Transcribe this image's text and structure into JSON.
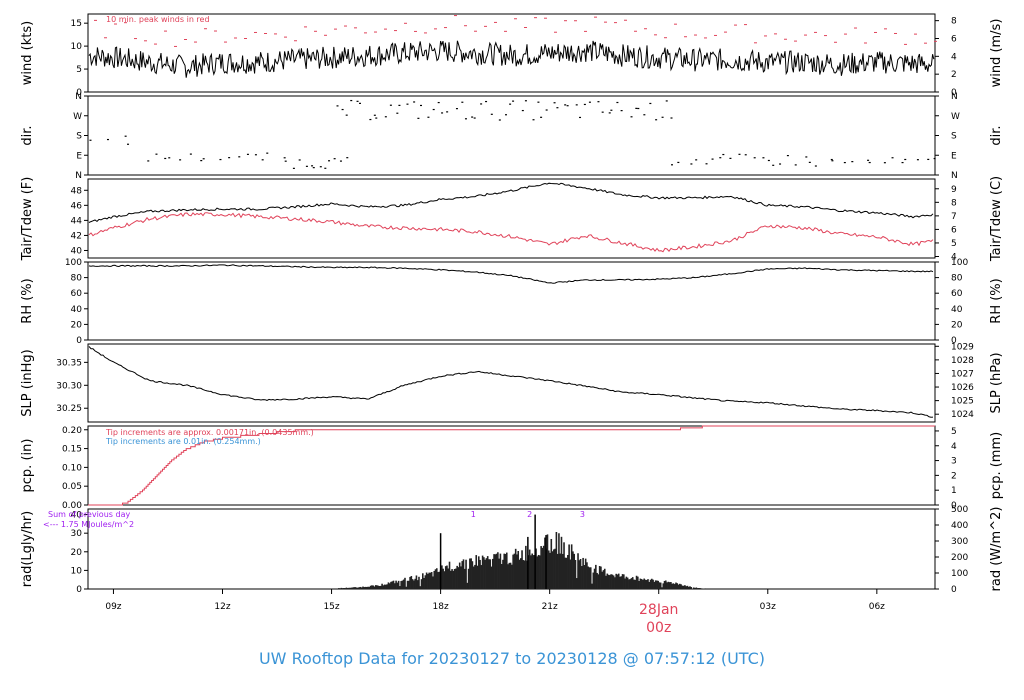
{
  "title": "UW Rooftop Data for 20230127  to  20230128 @ 07:57:12  (UTC)",
  "colors": {
    "title": "#3b94d6",
    "red": "#e0435a",
    "blue": "#3b94d6",
    "purple": "#a020f0",
    "black": "#000000"
  },
  "chart_data": [
    {
      "type": "line",
      "panel": "wind",
      "ylabel_left": "wind (kts)",
      "ylabel_right": "wind (m/s)",
      "left_ticks": [
        "0",
        "5",
        "10",
        "15"
      ],
      "right_ticks": [
        "0",
        "2",
        "4",
        "6",
        "8"
      ],
      "ylim": [
        0,
        17
      ],
      "annotation": "10 min. peak winds in red",
      "series": [
        {
          "x": [
            8.3,
            9,
            10,
            11,
            12,
            13,
            14,
            15,
            16,
            17,
            18,
            19,
            20,
            21,
            22,
            23,
            24,
            25,
            26,
            27,
            28,
            29,
            30,
            31.6
          ],
          "values": [
            8,
            7.5,
            6.5,
            5.5,
            6.5,
            6.5,
            7,
            7.5,
            8,
            8.5,
            9,
            8.5,
            8,
            8.5,
            9,
            8,
            7.5,
            7,
            7,
            6.5,
            6.5,
            6,
            6.5,
            6
          ]
        }
      ]
    },
    {
      "type": "scatter",
      "panel": "dir",
      "ylabel_left": "dir.",
      "ylabel_right": "dir.",
      "left_ticks": [
        "N",
        "E",
        "S",
        "W",
        "N"
      ],
      "right_ticks": [
        "N",
        "E",
        "S",
        "W",
        "N"
      ]
    },
    {
      "type": "line",
      "panel": "temp",
      "ylabel_left": "Tair/Tdew (F)",
      "ylabel_right": "Tair/Tdew (C)",
      "left_ticks": [
        "40",
        "42",
        "44",
        "46",
        "48"
      ],
      "right_ticks": [
        "4",
        "5",
        "6",
        "7",
        "8",
        "9"
      ],
      "ylim": [
        39,
        49.5
      ],
      "series": [
        {
          "x": [
            8.3,
            9,
            10,
            11,
            12,
            13,
            14,
            15,
            16,
            17,
            18,
            19,
            20,
            21,
            22,
            23,
            24,
            25,
            26,
            27,
            28,
            29,
            30,
            31,
            31.6
          ],
          "values": [
            43.7,
            44.5,
            45.2,
            45.4,
            45.5,
            45.5,
            45.8,
            46.2,
            45.8,
            46.0,
            46.8,
            47.2,
            48.0,
            49.0,
            48.3,
            47.4,
            47.0,
            47.0,
            47.2,
            46.0,
            45.8,
            45.3,
            45.0,
            44.5,
            44.8
          ]
        },
        {
          "x": [
            8.3,
            9,
            10,
            11,
            12,
            13,
            14,
            15,
            16,
            17,
            18,
            19,
            20,
            21,
            22,
            23,
            24,
            25,
            26,
            27,
            28,
            29,
            30,
            31,
            31.6
          ],
          "values": [
            42.0,
            43.0,
            44.2,
            44.8,
            44.8,
            44.5,
            44.2,
            43.8,
            43.2,
            43.0,
            42.8,
            42.5,
            41.8,
            40.8,
            42.0,
            41.0,
            40.0,
            40.5,
            41.3,
            43.3,
            43.0,
            42.2,
            41.8,
            40.8,
            41.3
          ]
        }
      ]
    },
    {
      "type": "line",
      "panel": "rh",
      "ylabel_left": "RH (%)",
      "ylabel_right": "RH (%)",
      "left_ticks": [
        "0",
        "20",
        "40",
        "60",
        "80",
        "100"
      ],
      "right_ticks": [
        "0",
        "20",
        "40",
        "60",
        "80",
        "100"
      ],
      "ylim": [
        0,
        100
      ],
      "series": [
        {
          "x": [
            8.3,
            9,
            10,
            11,
            12,
            13,
            14,
            15,
            16,
            17,
            18,
            19,
            20,
            21,
            22,
            23,
            24,
            25,
            26,
            27,
            28,
            29,
            30,
            31,
            31.6
          ],
          "values": [
            95,
            95,
            95,
            95,
            96,
            95,
            94,
            93,
            93,
            92,
            90,
            87,
            82,
            73,
            77,
            77,
            78,
            80,
            85,
            91,
            92,
            90,
            89,
            88,
            88
          ]
        }
      ]
    },
    {
      "type": "line",
      "panel": "slp",
      "ylabel_left": "SLP (inHg)",
      "ylabel_right": "SLP (hPa)",
      "left_ticks": [
        "30.25",
        "30.30",
        "30.35"
      ],
      "right_ticks": [
        "1024",
        "1025",
        "1026",
        "1027",
        "1028",
        "1029"
      ],
      "ylim": [
        30.22,
        30.39
      ],
      "series": [
        {
          "x": [
            8.3,
            9,
            10,
            11,
            12,
            13,
            14,
            15,
            16,
            17,
            18,
            19,
            20,
            21,
            22,
            23,
            24,
            25,
            26,
            27,
            28,
            29,
            30,
            31,
            31.6
          ],
          "values": [
            30.385,
            30.35,
            30.31,
            30.3,
            30.28,
            30.268,
            30.27,
            30.275,
            30.27,
            30.3,
            30.32,
            30.33,
            30.32,
            30.31,
            30.298,
            30.285,
            30.28,
            30.272,
            30.265,
            30.262,
            30.255,
            30.248,
            30.245,
            30.24,
            30.23
          ]
        }
      ]
    },
    {
      "type": "line",
      "panel": "pcp",
      "ylabel_left": "pcp. (in)",
      "ylabel_right": "pcp. (mm)",
      "left_ticks": [
        "0.00",
        "0.05",
        "0.10",
        "0.15",
        "0.20"
      ],
      "right_ticks": [
        "0",
        "1",
        "2",
        "3",
        "4",
        "5"
      ],
      "ylim": [
        0,
        0.21
      ],
      "annotation_red": "Tip increments are approx. 0.00171in. (0.0435mm.)",
      "annotation_blue": "Tip increments are 0.01in. (0.254mm.)",
      "series": [
        {
          "x": [
            8.3,
            9.1,
            9.4,
            9.8,
            10.2,
            10.6,
            11.0,
            11.5,
            12.0,
            13.0,
            14.0,
            18.0,
            24.0,
            25.2,
            31.6
          ],
          "values": [
            0,
            0,
            0.01,
            0.04,
            0.08,
            0.12,
            0.15,
            0.17,
            0.18,
            0.19,
            0.2,
            0.2,
            0.2,
            0.21,
            0.21
          ]
        }
      ]
    },
    {
      "type": "bar",
      "panel": "rad",
      "ylabel_left": "rad(Lgly/hr)",
      "ylabel_right": "rad (W/m^2)",
      "left_ticks": [
        "0",
        "10",
        "20",
        "30",
        "40"
      ],
      "right_ticks": [
        "0",
        "100",
        "200",
        "300",
        "400",
        "500"
      ],
      "ylim": [
        0,
        43
      ],
      "annotation_line1": "Sum of previous day",
      "annotation_line2": "<--- 1.75 MJoules/m^2",
      "markers": [
        "1",
        "2",
        "3"
      ],
      "x": [
        15.3,
        15.8,
        16.3,
        16.8,
        17.3,
        17.8,
        18.2,
        18.6,
        19.0,
        19.5,
        20.0,
        20.5,
        20.9,
        21.3,
        21.7,
        22.1,
        22.5,
        22.9,
        23.3,
        23.7,
        24.1,
        24.5,
        24.9,
        25.2
      ],
      "values": [
        0.5,
        1,
        2,
        4,
        6,
        8,
        12,
        14,
        15,
        16,
        17,
        20,
        26,
        24,
        18,
        12,
        9,
        7,
        6,
        5,
        4,
        3,
        1,
        0.3
      ]
    }
  ],
  "x_ticks": [
    "09z",
    "12z",
    "15z",
    "18z",
    "21z",
    "03z",
    "06z"
  ],
  "date_label": "28Jan",
  "date_sub": "00z"
}
